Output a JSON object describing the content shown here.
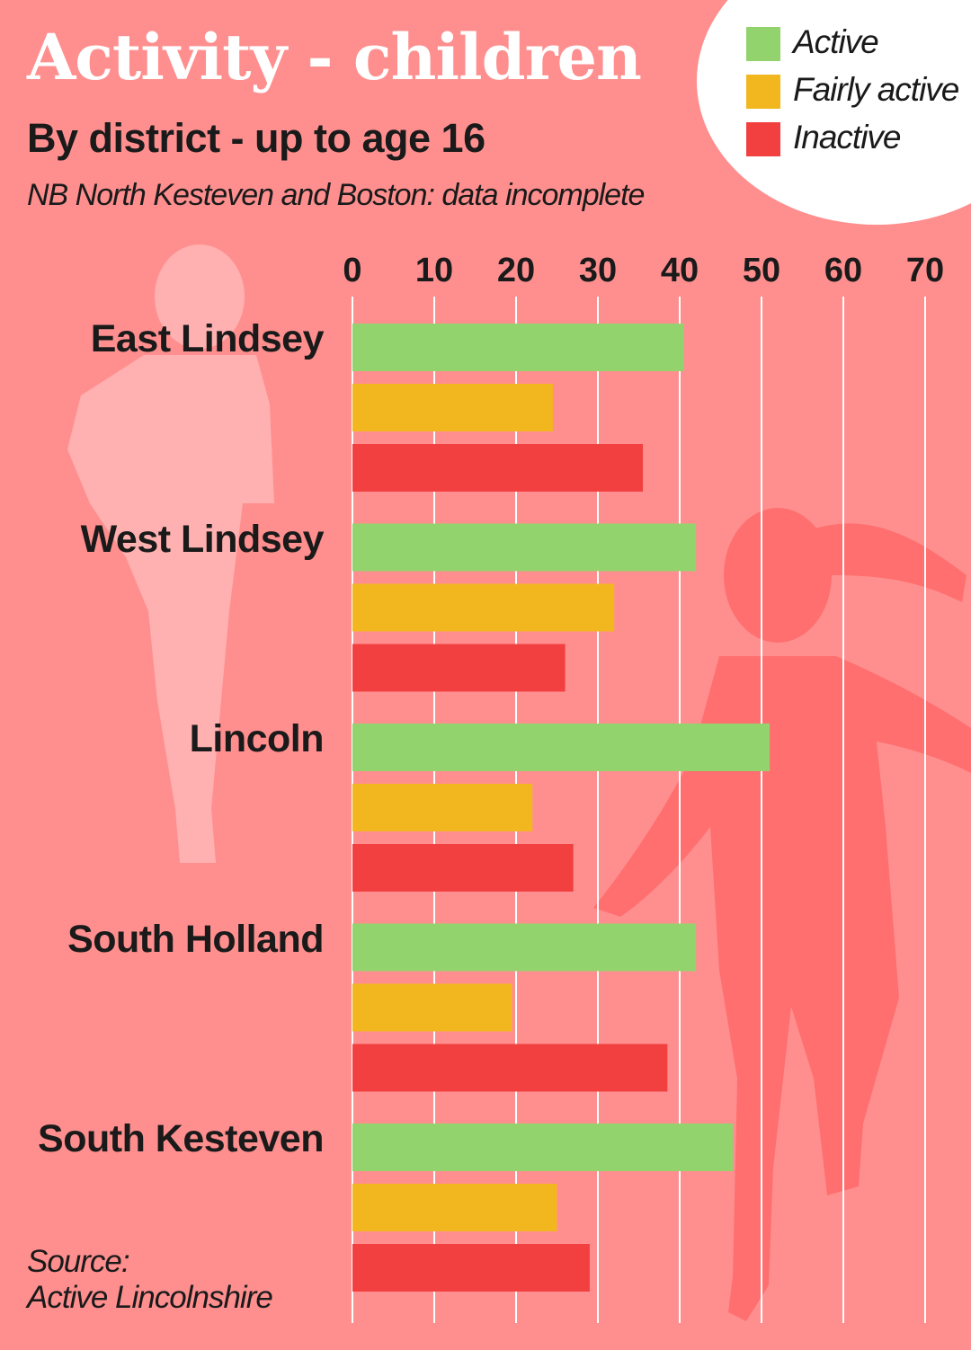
{
  "title": "Activity - children",
  "subtitle": "By district - up to age 16",
  "note": "NB North Kesteven and Boston: data incomplete",
  "source_line1": "Source:",
  "source_line2": "Active Lincolnshire",
  "colors": {
    "background": "#ff8f8f",
    "active": "#92d36e",
    "fairly_active": "#f2b71f",
    "inactive": "#f24040",
    "gridline": "#ffffff"
  },
  "chart_data": {
    "type": "bar",
    "orientation": "horizontal",
    "categories": [
      "East Lindsey",
      "West Lindsey",
      "Lincoln",
      "South Holland",
      "South Kesteven"
    ],
    "series": [
      {
        "name": "Active",
        "values": [
          40.5,
          42,
          51,
          42,
          46.5
        ]
      },
      {
        "name": "Fairly active",
        "values": [
          24.5,
          32,
          22,
          19.5,
          25
        ]
      },
      {
        "name": "Inactive",
        "values": [
          35.5,
          26,
          27,
          38.5,
          29
        ]
      }
    ],
    "xlim": [
      0,
      70
    ],
    "xticks": [
      "0",
      "10",
      "20",
      "30",
      "40",
      "50",
      "60",
      "70"
    ],
    "grid": true,
    "legend_position": "top-right"
  }
}
